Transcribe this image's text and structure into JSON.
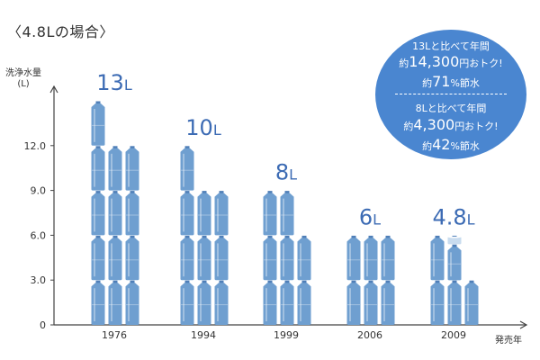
{
  "heading": "〈4.8Lの場合〉",
  "y_axis_title": "洗浄水量",
  "y_axis_unit": "(L)",
  "x_axis_title": "発売年",
  "callout": {
    "line1": "13Lと比べて年間",
    "line2_prefix": "約",
    "line2_big": "14,300",
    "line2_suffix": "円おトク!",
    "line3_prefix": "約",
    "line3_big": "71",
    "line3_suffix": "%節水",
    "line4": "8Lと比べて年間",
    "line5_prefix": "約",
    "line5_big": "4,300",
    "line5_suffix": "円おトク!",
    "line6_prefix": "約",
    "line6_big": "42",
    "line6_suffix": "%節水"
  },
  "colors": {
    "bottle": "#6f9fd0",
    "bottle_faded": "#c9dcef",
    "cap": "#4f7fb8",
    "value_label": "#3c6bb4",
    "callout_bg": "#4a86d0"
  },
  "chart_data": {
    "type": "bar",
    "categories": [
      "1976",
      "1994",
      "1999",
      "2006",
      "2009"
    ],
    "values": [
      13,
      10,
      8,
      6,
      4.8
    ],
    "value_labels": [
      "13L",
      "10L",
      "8L",
      "6L",
      "4.8L"
    ],
    "xlabel": "発売年",
    "ylabel": "洗浄水量 (L)",
    "ylim": [
      0,
      14
    ],
    "yticks": [
      0,
      3.0,
      6.0,
      9.0,
      12.0
    ],
    "ytick_labels": [
      "0",
      "3.0",
      "6.0",
      "9.0",
      "12.0"
    ],
    "bottle_unit_liters": 1,
    "grid": false,
    "legend": "none"
  }
}
